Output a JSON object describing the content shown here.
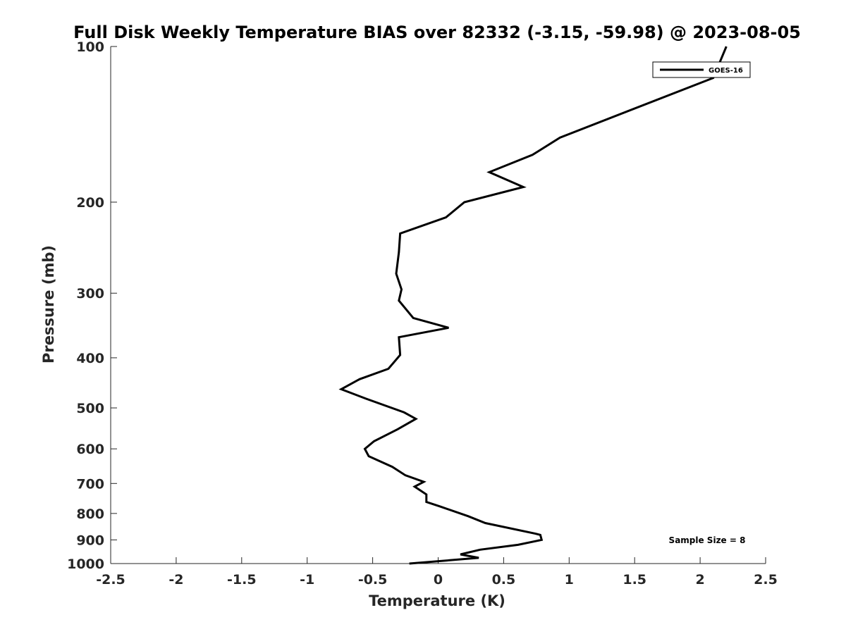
{
  "chart_data": {
    "type": "line",
    "title": "Full Disk Weekly Temperature BIAS over 82332 (-3.15, -59.98) @ 2023-08-05",
    "xlabel": "Temperature (K)",
    "ylabel": "Pressure (mb)",
    "xlim": [
      -2.5,
      2.5
    ],
    "ylim": [
      1000,
      100
    ],
    "yscale": "log",
    "xticks": [
      -2.5,
      -2,
      -1.5,
      -1,
      -0.5,
      0,
      0.5,
      1,
      1.5,
      2,
      2.5
    ],
    "xtick_labels": [
      "-2.5",
      "-2",
      "-1.5",
      "-1",
      "-0.5",
      "0",
      "0.5",
      "1",
      "1.5",
      "2",
      "2.5"
    ],
    "yticks": [
      100,
      200,
      300,
      400,
      500,
      600,
      700,
      800,
      900,
      1000
    ],
    "ytick_labels": [
      "100",
      "200",
      "300",
      "400",
      "500",
      "600",
      "700",
      "800",
      "900",
      "1000"
    ],
    "grid": false,
    "legend": {
      "position": "top-right"
    },
    "annotation": "Sample Size = 8",
    "series": [
      {
        "name": "GOES-16",
        "color": "#000000",
        "points": [
          [
            2.2,
            100
          ],
          [
            2.1,
            115
          ],
          [
            0.93,
            150
          ],
          [
            0.72,
            162
          ],
          [
            0.39,
            175
          ],
          [
            0.65,
            187
          ],
          [
            0.2,
            200
          ],
          [
            0.06,
            214
          ],
          [
            -0.29,
            230
          ],
          [
            -0.3,
            250
          ],
          [
            -0.32,
            275
          ],
          [
            -0.28,
            295
          ],
          [
            -0.3,
            310
          ],
          [
            -0.19,
            335
          ],
          [
            0.08,
            350
          ],
          [
            -0.3,
            365
          ],
          [
            -0.29,
            395
          ],
          [
            -0.38,
            420
          ],
          [
            -0.6,
            440
          ],
          [
            -0.74,
            460
          ],
          [
            -0.55,
            480
          ],
          [
            -0.26,
            510
          ],
          [
            -0.17,
            525
          ],
          [
            -0.31,
            550
          ],
          [
            -0.49,
            580
          ],
          [
            -0.56,
            600
          ],
          [
            -0.53,
            620
          ],
          [
            -0.35,
            650
          ],
          [
            -0.25,
            675
          ],
          [
            -0.11,
            695
          ],
          [
            -0.18,
            710
          ],
          [
            -0.09,
            735
          ],
          [
            -0.09,
            760
          ],
          [
            0.01,
            775
          ],
          [
            0.23,
            810
          ],
          [
            0.36,
            835
          ],
          [
            0.74,
            875
          ],
          [
            0.78,
            880
          ],
          [
            0.79,
            900
          ],
          [
            0.61,
            920
          ],
          [
            0.32,
            940
          ],
          [
            0.17,
            960
          ],
          [
            0.31,
            975
          ],
          [
            -0.22,
            1000
          ]
        ]
      }
    ]
  }
}
